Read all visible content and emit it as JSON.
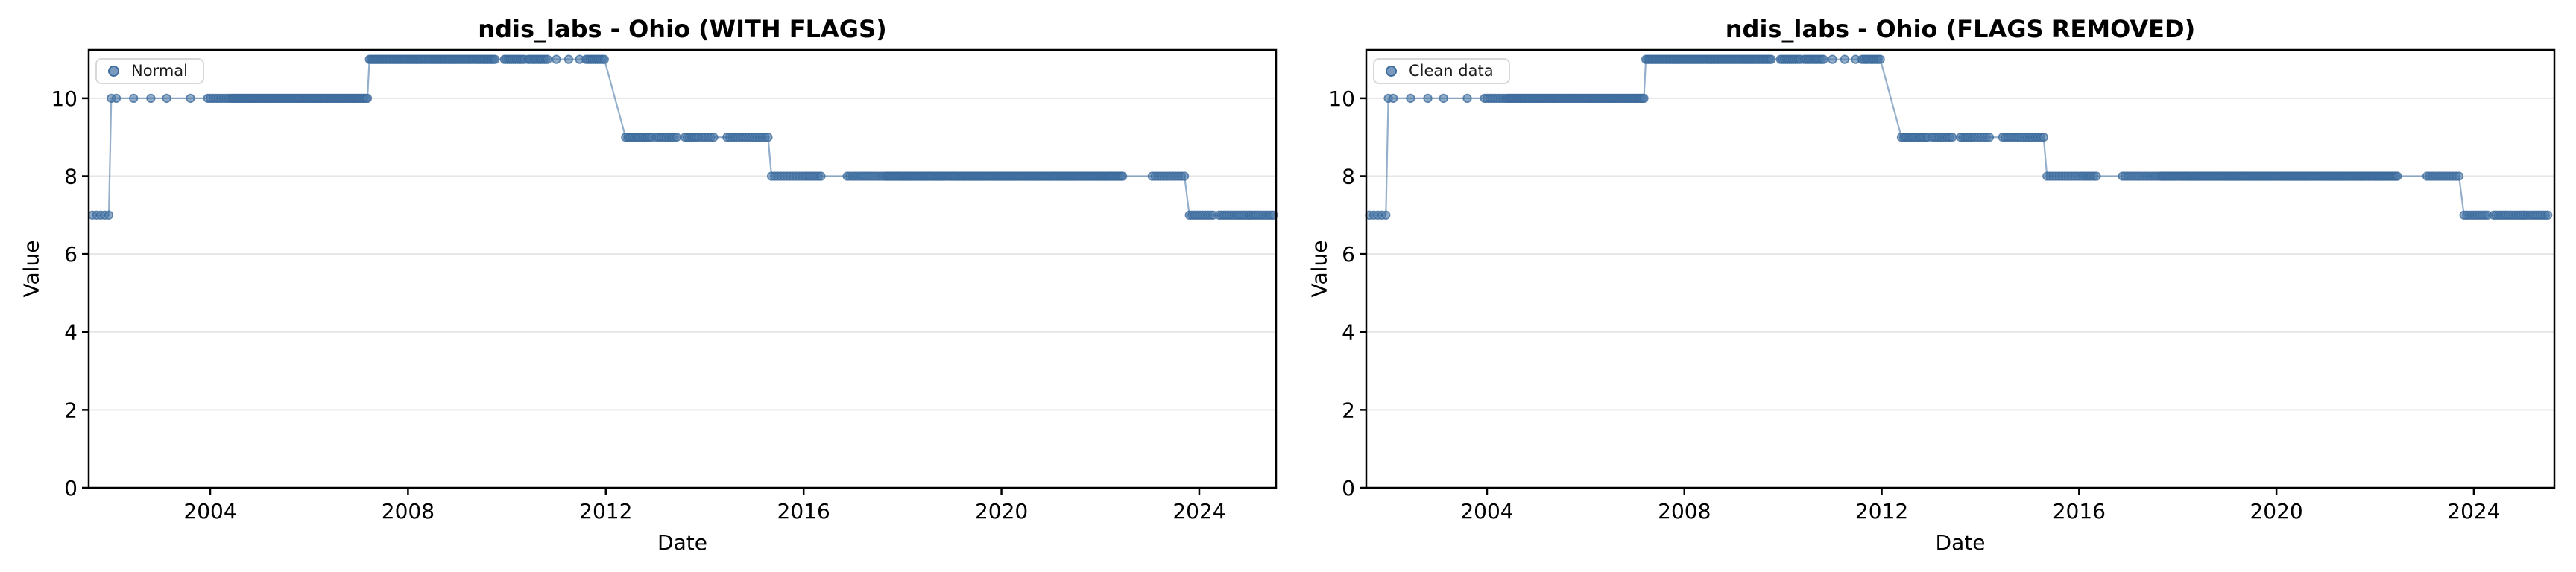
{
  "figure": {
    "background": "#ffffff",
    "n_subplots": 2
  },
  "chart_data": [
    {
      "type": "scatter",
      "title": "ndis_labs - Ohio (WITH FLAGS)",
      "xlabel": "Date",
      "ylabel": "Value",
      "legend": [
        "Normal"
      ],
      "legend_position": "upper left",
      "grid": "horizontal",
      "grid_color": "#e6e6e6",
      "marker_color": "#4d7aa9",
      "marker_edge_color": "#3a689a",
      "line_color": "#4d7aa9",
      "xlim": [
        2001.543,
        2025.553
      ],
      "ylim": [
        0,
        11.24
      ],
      "xticks": [
        2004,
        2008,
        2012,
        2016,
        2020,
        2024
      ],
      "yticks": [
        0,
        2,
        4,
        6,
        8,
        10
      ],
      "series": [
        {
          "name": "Normal",
          "style": "line+markers",
          "note": "step-shaped lab count over time; segments = [year_start, year_end, value, n_points]",
          "segments": [
            [
              2001.62,
              2001.95,
              7,
              5
            ],
            [
              2002.0,
              2002.1,
              10,
              2
            ],
            [
              2002.45,
              2002.45,
              10,
              1
            ],
            [
              2002.8,
              2002.8,
              10,
              1
            ],
            [
              2003.12,
              2003.12,
              10,
              1
            ],
            [
              2003.6,
              2003.6,
              10,
              1
            ],
            [
              2003.95,
              2004.38,
              10,
              9
            ],
            [
              2004.42,
              2007.18,
              10,
              85
            ],
            [
              2007.22,
              2009.76,
              11,
              80
            ],
            [
              2009.95,
              2010.35,
              11,
              11
            ],
            [
              2010.43,
              2010.82,
              11,
              11
            ],
            [
              2011.0,
              2011.0,
              11,
              1
            ],
            [
              2011.25,
              2011.25,
              11,
              1
            ],
            [
              2011.47,
              2011.47,
              11,
              1
            ],
            [
              2011.6,
              2011.97,
              11,
              10
            ],
            [
              2012.4,
              2012.93,
              9,
              13
            ],
            [
              2013.02,
              2013.43,
              9,
              9
            ],
            [
              2013.6,
              2013.88,
              9,
              7
            ],
            [
              2013.95,
              2014.18,
              9,
              5
            ],
            [
              2014.45,
              2015.28,
              9,
              16
            ],
            [
              2015.35,
              2015.97,
              8,
              11
            ],
            [
              2016.03,
              2016.35,
              8,
              7
            ],
            [
              2016.88,
              2017.6,
              8,
              14
            ],
            [
              2017.65,
              2022.45,
              8,
              150
            ],
            [
              2023.05,
              2023.7,
              8,
              12
            ],
            [
              2023.8,
              2024.28,
              7,
              10
            ],
            [
              2024.4,
              2025.0,
              7,
              13
            ],
            [
              2025.04,
              2025.5,
              7,
              10
            ]
          ]
        }
      ]
    },
    {
      "type": "scatter",
      "title": "ndis_labs - Ohio (FLAGS REMOVED)",
      "xlabel": "Date",
      "ylabel": "Value",
      "legend": [
        "Clean data"
      ],
      "legend_position": "upper left",
      "grid": "horizontal",
      "grid_color": "#e6e6e6",
      "marker_color": "#4d7aa9",
      "marker_edge_color": "#3a689a",
      "line_color": "#4d7aa9",
      "xlim": [
        2001.553,
        2025.633
      ],
      "ylim": [
        0,
        11.24
      ],
      "xticks": [
        2004,
        2008,
        2012,
        2016,
        2020,
        2024
      ],
      "yticks": [
        0,
        2,
        4,
        6,
        8,
        10
      ],
      "series": [
        {
          "name": "Clean data",
          "style": "line+markers",
          "note": "identical pattern to flagged plot; segments = [year_start, year_end, value, n_points]",
          "segments": [
            [
              2001.62,
              2001.95,
              7,
              5
            ],
            [
              2002.0,
              2002.1,
              10,
              2
            ],
            [
              2002.45,
              2002.45,
              10,
              1
            ],
            [
              2002.8,
              2002.8,
              10,
              1
            ],
            [
              2003.12,
              2003.12,
              10,
              1
            ],
            [
              2003.6,
              2003.6,
              10,
              1
            ],
            [
              2003.95,
              2004.38,
              10,
              9
            ],
            [
              2004.42,
              2007.18,
              10,
              85
            ],
            [
              2007.22,
              2009.76,
              11,
              80
            ],
            [
              2009.95,
              2010.35,
              11,
              11
            ],
            [
              2010.43,
              2010.82,
              11,
              11
            ],
            [
              2011.0,
              2011.0,
              11,
              1
            ],
            [
              2011.25,
              2011.25,
              11,
              1
            ],
            [
              2011.47,
              2011.47,
              11,
              1
            ],
            [
              2011.6,
              2011.97,
              11,
              10
            ],
            [
              2012.4,
              2012.93,
              9,
              13
            ],
            [
              2013.02,
              2013.43,
              9,
              9
            ],
            [
              2013.6,
              2013.88,
              9,
              7
            ],
            [
              2013.95,
              2014.18,
              9,
              5
            ],
            [
              2014.45,
              2015.28,
              9,
              16
            ],
            [
              2015.35,
              2015.97,
              8,
              11
            ],
            [
              2016.03,
              2016.35,
              8,
              7
            ],
            [
              2016.88,
              2017.6,
              8,
              14
            ],
            [
              2017.65,
              2022.45,
              8,
              150
            ],
            [
              2023.05,
              2023.7,
              8,
              12
            ],
            [
              2023.8,
              2024.28,
              7,
              10
            ],
            [
              2024.4,
              2025.0,
              7,
              13
            ],
            [
              2025.04,
              2025.5,
              7,
              10
            ]
          ]
        }
      ]
    }
  ]
}
